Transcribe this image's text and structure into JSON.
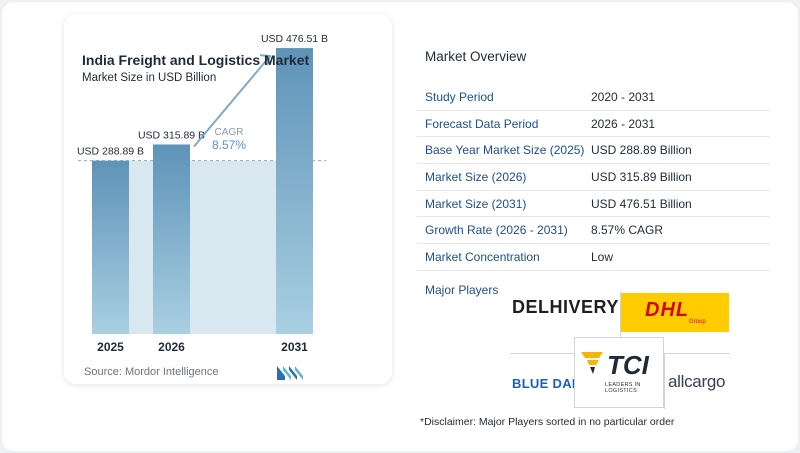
{
  "chart_data": {
    "type": "bar",
    "title": "India Freight and Logistics Market",
    "subtitle": "Market Size in USD Billion",
    "categories": [
      "2025",
      "2026",
      "2031"
    ],
    "values": [
      288.89,
      315.89,
      476.51
    ],
    "value_labels": [
      "USD 288.89 B",
      "USD 315.89 B",
      "USD 476.51 B"
    ],
    "cagr_label": "CAGR",
    "cagr_value": "8.57%",
    "ylim": [
      0,
      500
    ],
    "grid": false,
    "bar_color": "#5e93b8",
    "bar_color_light": "#a9cfe2",
    "baseline_fill": "#d9e7f1"
  },
  "source": "Source: Mordor Intelligence",
  "overview": {
    "title": "Market Overview",
    "rows": [
      {
        "label": "Study Period",
        "value": "2020 - 2031"
      },
      {
        "label": "Forecast Data Period",
        "value": "2026 - 2031"
      },
      {
        "label": "Base Year Market Size (2025)",
        "value": "USD 288.89 Billion"
      },
      {
        "label": "Market Size (2026)",
        "value": "USD 315.89 Billion"
      },
      {
        "label": "Market Size (2031)",
        "value": "USD 476.51 Billion"
      },
      {
        "label": "Growth Rate (2026 - 2031)",
        "value": "8.57% CAGR"
      },
      {
        "label": "Market Concentration",
        "value": "Low"
      }
    ]
  },
  "players": {
    "label": "Major Players",
    "delhivery": "DELHIVERY",
    "dhl": "DHL",
    "dhl_sub": "Group",
    "bluedart": "BLUE DART",
    "tci": "TCI",
    "tci_sub": "LEADERS IN LOGISTICS",
    "allcargo": "allcargo"
  },
  "disclaimer": "*Disclaimer: Major Players sorted in no particular order",
  "colors": {
    "accent_blue": "#1e4f8c",
    "arrow": "#7fa8c9"
  }
}
